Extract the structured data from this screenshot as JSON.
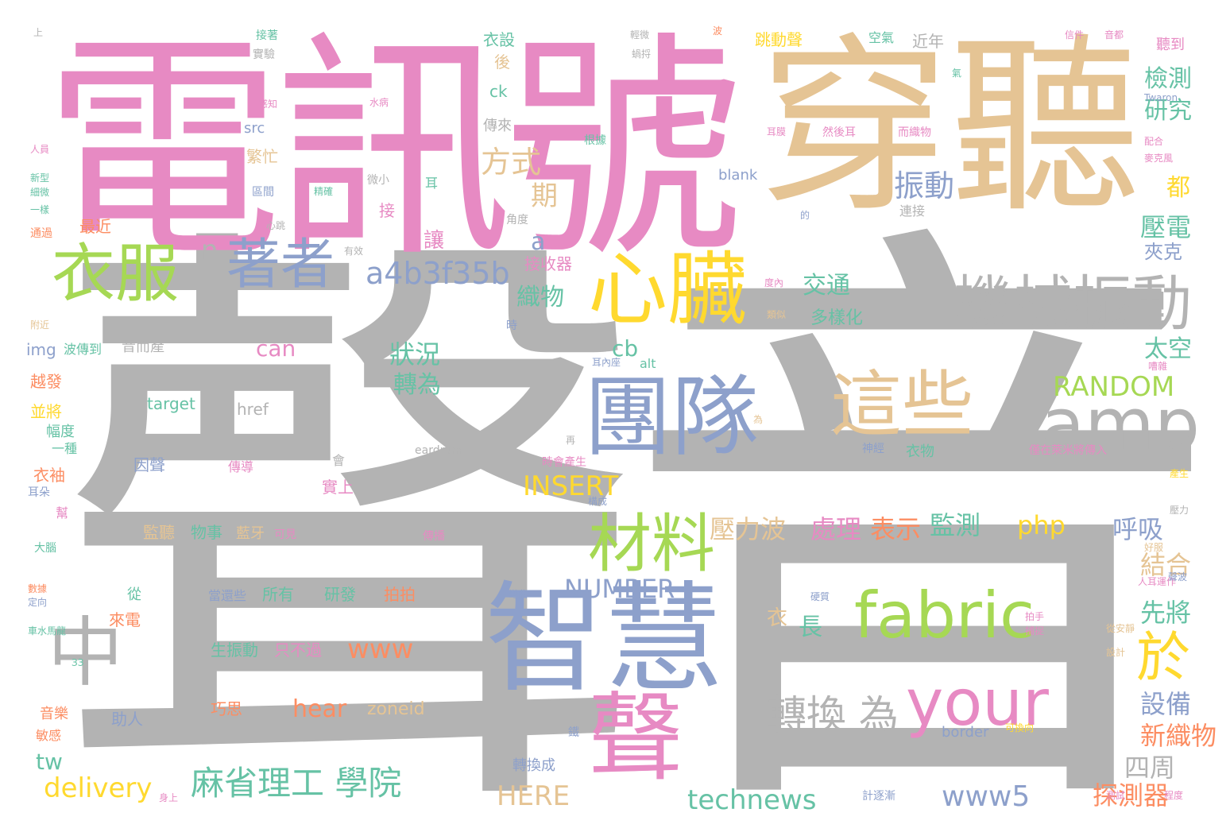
{
  "palette": {
    "gray": "#b3b3b3",
    "pink": "#e78ac3",
    "tan": "#e5c494",
    "blue": "#8da0cb",
    "green": "#a6d854",
    "yellow": "#ffd92f",
    "teal": "#66c2a5",
    "orange": "#fc8d62",
    "background": "#ffffff"
  },
  "words": [
    "聲音",
    "電訊號",
    "穿聽",
    "智慧",
    "團隊",
    "心臟",
    "機械振動",
    "amp",
    "這些",
    "fabric",
    "your",
    "聲",
    "衣服",
    "著者",
    "材料",
    "中",
    "於",
    "麻省理工 學院",
    "轉換 為",
    "a4b3f35b",
    "方式",
    "振動",
    "RANDOM",
    "INSERT",
    "NUMBER",
    "www",
    "delivery",
    "technews",
    "www5",
    "HERE",
    "壓力波",
    "處理",
    "表示",
    "監測",
    "php",
    "呼吸",
    "結合",
    "先將",
    "設備",
    "新織物",
    "四周",
    "探測器",
    "壓電",
    "夾克",
    "檢測",
    "研究",
    "太空",
    "狀況",
    "轉為",
    "織物",
    "交通",
    "多樣化",
    "期",
    "都",
    "n",
    "can",
    "cb",
    "長",
    "hear",
    "zoneid",
    "tw",
    "衣",
    "衣設",
    "後",
    "ck",
    "傳來",
    "src",
    "繁忙",
    "最近",
    "img",
    "音而產",
    "越發",
    "並將",
    "幅度",
    "一種",
    "衣袖",
    "耳朵",
    "因聲",
    "傳導",
    "會",
    "實上",
    "監聽",
    "物事",
    "藍牙",
    "可見",
    "傳播",
    "從",
    "來電",
    "當還些",
    "所有",
    "研發",
    "拍拍",
    "生振動",
    "只不過",
    "巧思",
    "助人",
    "音樂",
    "敏感",
    "轉換成",
    "接收器",
    "讓",
    "a",
    "接",
    "alt",
    "target",
    "href",
    "eardrum",
    "blank",
    "跳動聲",
    "近年",
    "聽到",
    "連接",
    "空氣",
    "然後耳",
    "而織物",
    "衣物",
    "神經",
    "Twaron",
    "border",
    "耳",
    "角度",
    "有效",
    "類似",
    "時",
    "為",
    "再",
    "上",
    "接著",
    "實驗",
    "感知",
    "水病",
    "人員",
    "新型",
    "細微",
    "一樣",
    "通過",
    "附近",
    "區間",
    "精確",
    "微小",
    "心跳",
    "根據",
    "耳膜",
    "時會產生",
    "僅在萊米將傳入",
    "人耳運作",
    "從安靜",
    "拍手",
    "捕捉",
    "設計",
    "測試",
    "程度",
    "壓力",
    "好服",
    "產生",
    "配合",
    "麥克風",
    "信件",
    "音都",
    "蝸捋",
    "輕微",
    "波",
    "氣",
    "的",
    "嘈雜",
    "耳內座",
    "度內",
    "硬質",
    "彎曲",
    "構成",
    "可換向",
    "計逐漸",
    "鐵",
    "身上",
    "車水馬龍",
    "定向",
    "數據",
    "大腦",
    "幫",
    "聲波",
    "波傳到",
    "ЗЗ"
  ]
}
